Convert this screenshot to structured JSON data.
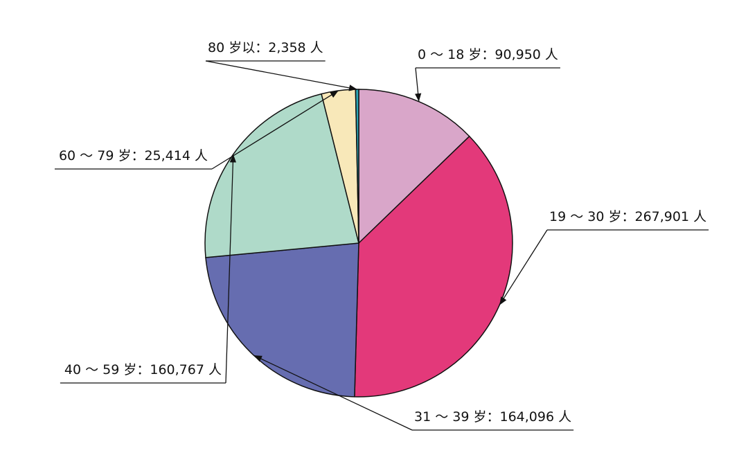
{
  "chart_data": {
    "type": "pie",
    "categories": [
      "0 ～ 18 岁",
      "19 ～ 30 岁",
      "31 ～ 39 岁",
      "40 ～ 59 岁",
      "60 ～ 79 岁",
      "80 岁以"
    ],
    "separator": "：",
    "values": [
      90950,
      267901,
      164096,
      160767,
      25414,
      2358
    ],
    "value_labels": [
      "90,950 人",
      "267,901 人",
      "164,096 人",
      "160,767 人",
      "25,414 人",
      "2,358 人"
    ],
    "colors": [
      "#d9a6c9",
      "#e3397a",
      "#666db0",
      "#afdac9",
      "#f8e8b9",
      "#2aa6b6"
    ]
  }
}
